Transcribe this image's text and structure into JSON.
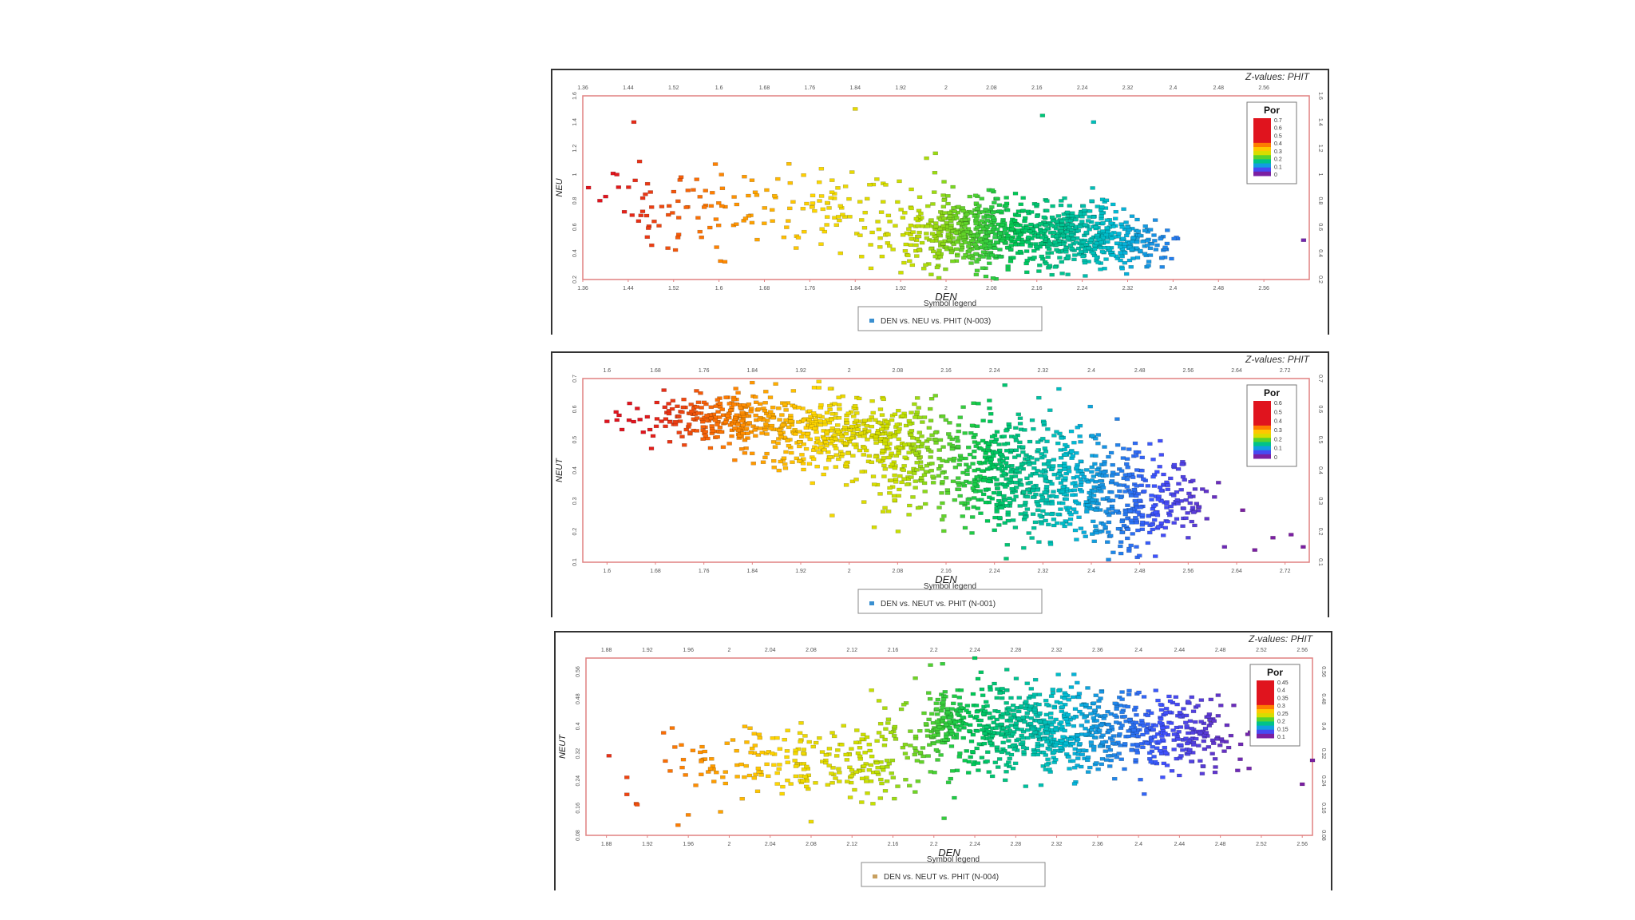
{
  "colors": {
    "frame": "#333333",
    "plot_border": "#e08080",
    "tick_text": "#555555",
    "colorscale": [
      "#7b1fa2",
      "#3f51ff",
      "#00bcd4",
      "#00c853",
      "#c6e000",
      "#ffd600",
      "#ff7f00",
      "#e0141e"
    ]
  },
  "chart_data": [
    {
      "type": "scatter",
      "ztitle": "Z-values: PHIT",
      "xlabel": "DEN",
      "ylabel": "NEU",
      "x_ticks": [
        "1.36",
        "1.44",
        "1.52",
        "1.6",
        "1.68",
        "1.76",
        "1.84",
        "1.92",
        "2",
        "2.08",
        "2.16",
        "2.24",
        "2.32",
        "2.4",
        "2.48",
        "2.56"
      ],
      "x_range": [
        1.36,
        2.64
      ],
      "y_ticks": [
        "0.2",
        "0.4",
        "0.6",
        "0.8",
        "1",
        "1.2",
        "1.4",
        "1.6"
      ],
      "y_range": [
        0.2,
        1.6
      ],
      "legend_title": "Symbol legend",
      "legend_entry": "DEN vs. NEU vs. PHIT (N-003)",
      "legend_color": "#3a8fd0",
      "colorbar": {
        "title": "Por",
        "labels": [
          "0.7",
          "0.6",
          "0.5",
          "0.4",
          "0.3",
          "0.2",
          "0.1",
          "0"
        ]
      },
      "z_range": [
        0,
        0.75
      ],
      "clusters": [
        {
          "x": 2.05,
          "y": 0.55,
          "sx": 0.07,
          "sy": 0.13,
          "n": 520
        },
        {
          "x": 2.23,
          "y": 0.55,
          "sx": 0.05,
          "sy": 0.13,
          "n": 360
        },
        {
          "x": 2.33,
          "y": 0.46,
          "sx": 0.04,
          "sy": 0.09,
          "n": 120
        },
        {
          "x": 1.8,
          "y": 0.72,
          "sx": 0.17,
          "sy": 0.17,
          "n": 140
        },
        {
          "x": 1.52,
          "y": 0.75,
          "sx": 0.08,
          "sy": 0.15,
          "n": 45
        }
      ],
      "outliers": [
        [
          1.37,
          0.9
        ],
        [
          1.42,
          1.0
        ],
        [
          1.45,
          1.4
        ],
        [
          1.46,
          1.1
        ],
        [
          1.84,
          1.5
        ],
        [
          2.17,
          1.45
        ],
        [
          2.26,
          1.4
        ],
        [
          2.63,
          0.5
        ]
      ]
    },
    {
      "type": "scatter",
      "ztitle": "Z-values: PHIT",
      "xlabel": "DEN",
      "ylabel": "NEUT",
      "x_ticks": [
        "1.6",
        "1.68",
        "1.76",
        "1.84",
        "1.92",
        "2",
        "2.08",
        "2.16",
        "2.24",
        "2.32",
        "2.4",
        "2.48",
        "2.56",
        "2.64",
        "2.72"
      ],
      "x_range": [
        1.56,
        2.76
      ],
      "y_ticks": [
        "0.1",
        "0.2",
        "0.3",
        "0.4",
        "0.5",
        "0.6",
        "0.7"
      ],
      "y_range": [
        0.1,
        0.7
      ],
      "legend_title": "Symbol legend",
      "legend_entry": "DEN vs. NEUT vs. PHIT (N-001)",
      "legend_color": "#3a8fd0",
      "colorbar": {
        "title": "Por",
        "labels": [
          "0.6",
          "0.5",
          "0.4",
          "0.3",
          "0.2",
          "0.1",
          "0"
        ]
      },
      "z_range": [
        0,
        0.6
      ],
      "clusters": [
        {
          "x": 1.8,
          "y": 0.57,
          "sx": 0.07,
          "sy": 0.04,
          "n": 260
        },
        {
          "x": 1.97,
          "y": 0.52,
          "sx": 0.07,
          "sy": 0.06,
          "n": 340
        },
        {
          "x": 2.1,
          "y": 0.45,
          "sx": 0.05,
          "sy": 0.09,
          "n": 200
        },
        {
          "x": 2.24,
          "y": 0.4,
          "sx": 0.05,
          "sy": 0.1,
          "n": 320
        },
        {
          "x": 2.36,
          "y": 0.35,
          "sx": 0.05,
          "sy": 0.1,
          "n": 300
        },
        {
          "x": 2.47,
          "y": 0.3,
          "sx": 0.04,
          "sy": 0.08,
          "n": 200
        },
        {
          "x": 2.55,
          "y": 0.3,
          "sx": 0.02,
          "sy": 0.05,
          "n": 60
        }
      ],
      "outliers": [
        [
          1.6,
          0.56
        ],
        [
          1.62,
          0.58
        ],
        [
          1.95,
          0.69
        ],
        [
          1.95,
          0.67
        ],
        [
          2.61,
          0.36
        ],
        [
          2.65,
          0.27
        ],
        [
          2.7,
          0.18
        ],
        [
          2.73,
          0.19
        ],
        [
          2.75,
          0.15
        ],
        [
          2.62,
          0.15
        ],
        [
          2.67,
          0.14
        ],
        [
          2.56,
          0.18
        ]
      ]
    },
    {
      "type": "scatter",
      "ztitle": "Z-values: PHIT",
      "xlabel": "DEN",
      "ylabel": "NEUT",
      "x_ticks": [
        "1.88",
        "1.92",
        "1.96",
        "2",
        "2.04",
        "2.08",
        "2.12",
        "2.16",
        "2.2",
        "2.24",
        "2.28",
        "2.32",
        "2.36",
        "2.4",
        "2.44",
        "2.48",
        "2.52",
        "2.56"
      ],
      "x_range": [
        1.86,
        2.57
      ],
      "y_ticks": [
        "0.08",
        "0.16",
        "0.24",
        "0.32",
        "0.4",
        "0.48",
        "0.56"
      ],
      "y_range": [
        0.08,
        0.6
      ],
      "legend_title": "Symbol legend",
      "legend_entry": "DEN vs. NEUT vs. PHIT (N-004)",
      "legend_color": "#c8a060",
      "colorbar": {
        "title": "Por",
        "labels": [
          "0.45",
          "0.4",
          "0.35",
          "0.3",
          "0.25",
          "0.2",
          "0.15",
          "0.1"
        ]
      },
      "z_range": [
        0.08,
        0.48
      ],
      "clusters": [
        {
          "x": 2.28,
          "y": 0.4,
          "sx": 0.05,
          "sy": 0.06,
          "n": 420
        },
        {
          "x": 2.37,
          "y": 0.38,
          "sx": 0.05,
          "sy": 0.06,
          "n": 360
        },
        {
          "x": 2.45,
          "y": 0.37,
          "sx": 0.03,
          "sy": 0.05,
          "n": 120
        },
        {
          "x": 2.21,
          "y": 0.42,
          "sx": 0.01,
          "sy": 0.04,
          "n": 80
        },
        {
          "x": 2.14,
          "y": 0.3,
          "sx": 0.05,
          "sy": 0.05,
          "n": 150
        },
        {
          "x": 2.02,
          "y": 0.3,
          "sx": 0.06,
          "sy": 0.05,
          "n": 110
        }
      ],
      "outliers": [
        [
          1.9,
          0.2
        ],
        [
          1.91,
          0.17
        ],
        [
          1.9,
          0.25
        ],
        [
          1.95,
          0.11
        ],
        [
          1.96,
          0.14
        ],
        [
          2.08,
          0.12
        ],
        [
          2.24,
          0.6
        ],
        [
          2.22,
          0.19
        ],
        [
          2.21,
          0.13
        ],
        [
          2.52,
          0.37
        ],
        [
          2.56,
          0.23
        ],
        [
          2.57,
          0.3
        ]
      ]
    }
  ]
}
